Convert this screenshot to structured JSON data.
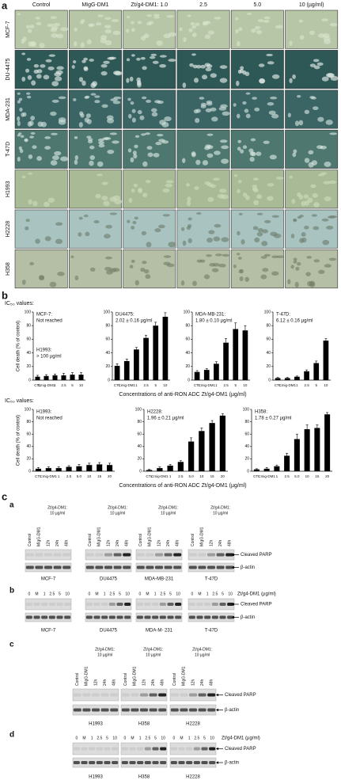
{
  "panel_a": {
    "label": "a",
    "columns": [
      "Control",
      "MIgG-DM1",
      "Zt/g4-DM1: 1.0",
      "2.5",
      "5.0",
      "10 (µg/ml)"
    ],
    "rows": [
      "MCF-7",
      "DU-4475",
      "MDA-231",
      "T-47D",
      "H1993",
      "H2228",
      "H358"
    ]
  },
  "panel_b": {
    "label": "b"
  },
  "chart_data": [
    {
      "type": "bar",
      "section_title": "IC₅₀ values:",
      "ylabel": "Cell death (% of control)",
      "xlabel": "Concentrations of anti-RON ADC Zt/g4-DM1 (µg/ml)",
      "annotations": [
        {
          "lines": [
            "MCF-7:",
            "Not reached"
          ]
        },
        {
          "lines": [
            "H1993:",
            "> 100 µg/ml"
          ]
        }
      ],
      "categories": [
        "CTL",
        "Cmig-DM1",
        "1",
        "2.5",
        "5",
        "10"
      ],
      "values": [
        5,
        6,
        7,
        7,
        8,
        8
      ],
      "errors": [
        2,
        2,
        2,
        3,
        3,
        3
      ],
      "color": "#000000",
      "ylim": [
        0,
        100
      ],
      "yticks": [
        0,
        20,
        40,
        60,
        80,
        100
      ]
    },
    {
      "type": "bar",
      "annotations": [
        {
          "lines": [
            "DU4475:",
            "2.02 ± 0.16 µg/ml"
          ]
        }
      ],
      "categories": [
        "CTL",
        "Cmig-DM1",
        "1",
        "2.5",
        "5",
        "10"
      ],
      "values": [
        21,
        28,
        45,
        62,
        80,
        93
      ],
      "errors": [
        3,
        3,
        3,
        4,
        5,
        6
      ],
      "color": "#000000",
      "ylim": [
        0,
        100
      ],
      "yticks": [
        0,
        20,
        40,
        60,
        80,
        100
      ]
    },
    {
      "type": "bar",
      "annotations": [
        {
          "lines": [
            "MDA-MB-231:",
            "1.80 ± 0.10 µg/ml"
          ]
        }
      ],
      "categories": [
        "CTL",
        "Cmig-DM1",
        "1",
        "2.5",
        "5",
        "10"
      ],
      "values": [
        12,
        15,
        24,
        55,
        75,
        73
      ],
      "errors": [
        2,
        2,
        3,
        6,
        9,
        7
      ],
      "color": "#000000",
      "ylim": [
        0,
        100
      ],
      "yticks": [
        0,
        20,
        40,
        60,
        80,
        100
      ]
    },
    {
      "type": "bar",
      "annotations": [
        {
          "lines": [
            "T-47D:",
            "6.12 ± 0.16 µg/ml"
          ]
        }
      ],
      "categories": [
        "CTL",
        "Cmig-DM1",
        "1",
        "2.5",
        "5",
        "10"
      ],
      "values": [
        3,
        3,
        5,
        13,
        25,
        58
      ],
      "errors": [
        1,
        1,
        1,
        2,
        3,
        3
      ],
      "color": "#000000",
      "ylim": [
        0,
        100
      ],
      "yticks": [
        0,
        20,
        40,
        60,
        80,
        100
      ]
    },
    {
      "type": "bar",
      "section_title": "IC₅₀ values:",
      "ylabel": "Cell death (% of control)",
      "xlabel": "Concentrations of anti-RON ADC Zt/g4-DM1 (µg/ml)",
      "annotations": [
        {
          "lines": [
            "H1993:",
            "Not reached"
          ]
        }
      ],
      "categories": [
        "CTL",
        "Cmig-DM1",
        "1",
        "2.5",
        "5.0",
        "10",
        "15",
        "20"
      ],
      "values": [
        4,
        5,
        5,
        7,
        8,
        10,
        11,
        10
      ],
      "errors": [
        2,
        2,
        2,
        2,
        3,
        3,
        3,
        3
      ],
      "color": "#000000",
      "ylim": [
        0,
        100
      ],
      "yticks": [
        0,
        20,
        40,
        60,
        80,
        100
      ]
    },
    {
      "type": "bar",
      "annotations": [
        {
          "lines": [
            "H2228:",
            "1.96 ± 0.21 µg/ml"
          ]
        }
      ],
      "categories": [
        "CTL",
        "Cmig-DM1",
        "1",
        "2.5",
        "5.0",
        "10",
        "15",
        "20"
      ],
      "values": [
        2,
        5,
        9,
        15,
        48,
        65,
        78,
        90
      ],
      "errors": [
        1,
        2,
        2,
        2,
        6,
        5,
        4,
        3
      ],
      "color": "#000000",
      "ylim": [
        0,
        100
      ],
      "yticks": [
        0,
        20,
        40,
        60,
        80,
        100
      ]
    },
    {
      "type": "bar",
      "annotations": [
        {
          "lines": [
            "H358:",
            "1.78 ± 0.27 µg/ml"
          ]
        }
      ],
      "categories": [
        "CTL",
        "Cmig-DM1",
        "1",
        "2.5",
        "5.0",
        "10",
        "15",
        "20"
      ],
      "values": [
        3,
        4,
        8,
        25,
        52,
        68,
        70,
        92
      ],
      "errors": [
        1,
        2,
        2,
        4,
        8,
        7,
        5,
        3
      ],
      "color": "#000000",
      "ylim": [
        0,
        100
      ],
      "yticks": [
        0,
        20,
        40,
        60,
        80,
        100
      ]
    }
  ],
  "panel_c": {
    "label": "c",
    "blots": [
      {
        "label": "a",
        "group_header": [
          "Zt/g4-DM1:",
          "10 µg/ml"
        ],
        "lanes": [
          "Control",
          "MIgG-DM1",
          "12h",
          "24h",
          "48h"
        ],
        "cell_lines": [
          "MCF-7",
          "DU4475",
          "MDA-MB-231",
          "T-47D"
        ],
        "markers": [
          "Cleaved PARP",
          "β-actin"
        ]
      },
      {
        "label": "b",
        "axis_label": "Zt/g4-DM1 (µg/ml)",
        "lanes": [
          "0",
          "M",
          "1",
          "2.5",
          "5",
          "10"
        ],
        "cell_lines": [
          "MCF-7",
          "DU4475",
          "MDA-M- 231",
          "T-47D"
        ],
        "markers": [
          "Cleaved PARP",
          "β-actin"
        ]
      },
      {
        "label": "c",
        "group_header": [
          "Zt/g4-DM1:",
          "10 µg/ml"
        ],
        "lanes": [
          "Control",
          "MIgG-DM1",
          "12h",
          "24h",
          "48h"
        ],
        "cell_lines": [
          "H1993",
          "H358",
          "H2228"
        ],
        "markers": [
          "Cleaved PARP",
          "β-actin"
        ]
      },
      {
        "label": "d",
        "axis_label": "Zt/g4-DM1 (µg/ml)",
        "lanes": [
          "0",
          "M",
          "1",
          "2.5",
          "5",
          "10"
        ],
        "cell_lines": [
          "H1993",
          "H358",
          "H2228"
        ],
        "markers": [
          "Cleaved PARP",
          "β-actin"
        ]
      }
    ]
  }
}
